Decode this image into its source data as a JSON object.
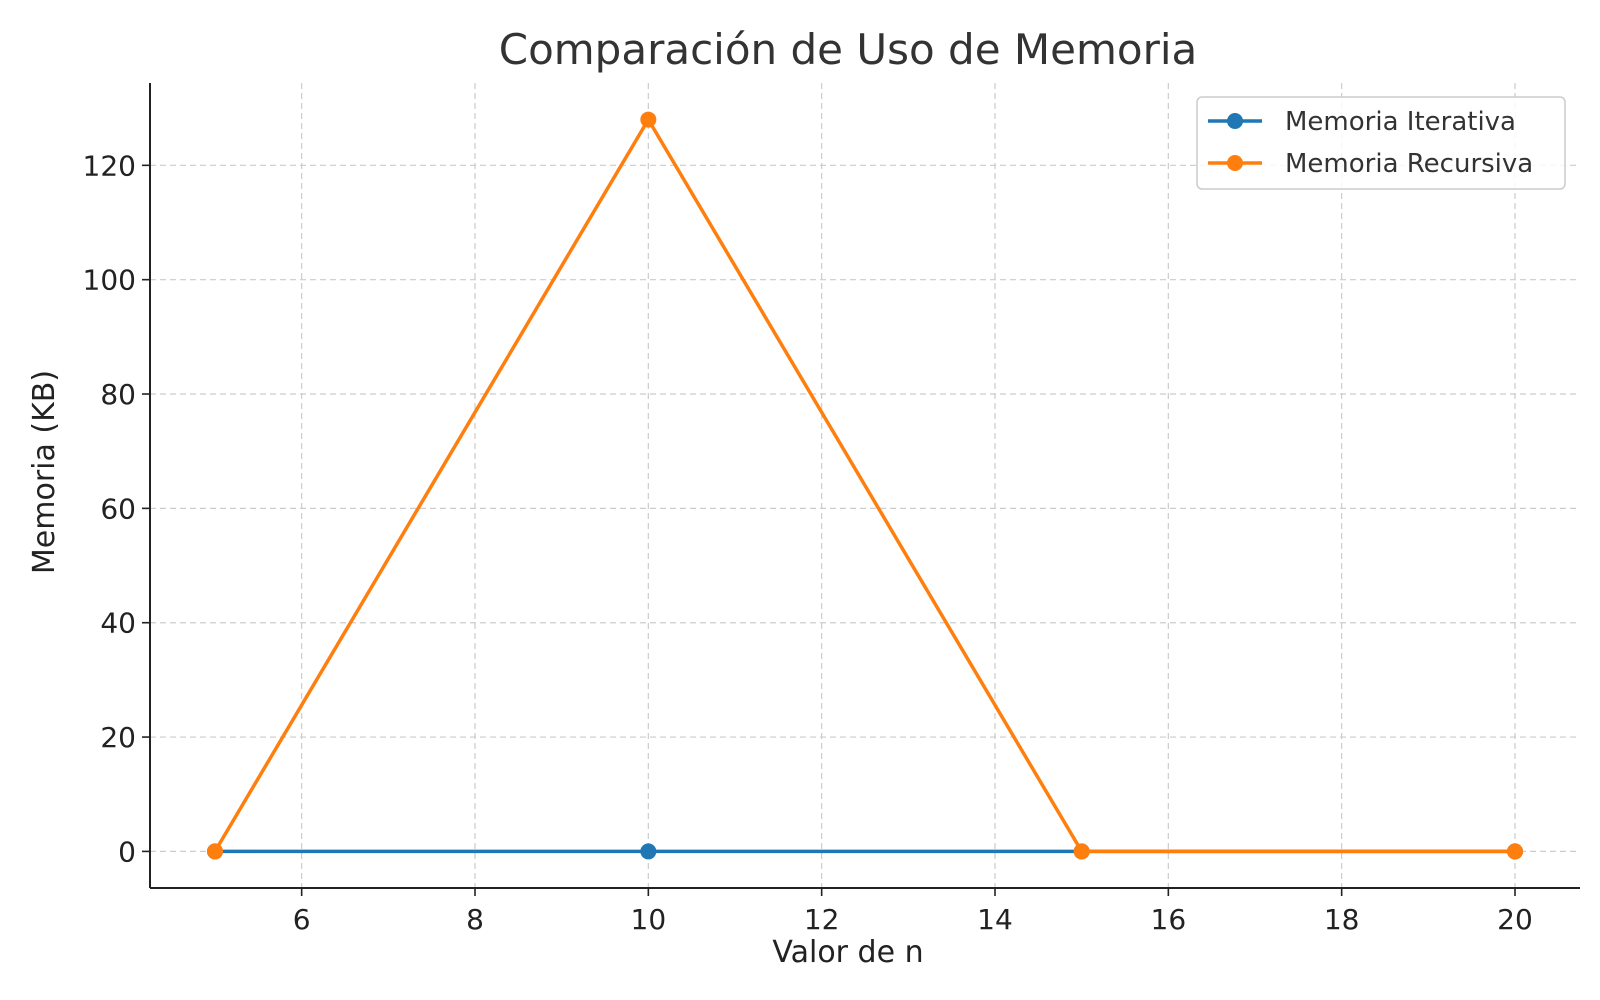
{
  "chart_data": {
    "type": "line",
    "title": "Comparación de Uso de Memoria",
    "xlabel": "Valor de n",
    "ylabel": "Memoria (KB)",
    "xlim": [
      4.25,
      20.75
    ],
    "ylim": [
      -6.4,
      134.4
    ],
    "xticks": [
      6,
      8,
      10,
      12,
      14,
      16,
      18,
      20
    ],
    "yticks": [
      0,
      20,
      40,
      60,
      80,
      100,
      120
    ],
    "grid": true,
    "legend_position": "top-right",
    "series": [
      {
        "name": "Memoria Iterativa",
        "color": "#1f77b4",
        "marker": "circle",
        "x": [
          5,
          10,
          15,
          20
        ],
        "y": [
          0,
          0,
          0,
          0
        ]
      },
      {
        "name": "Memoria Recursiva",
        "color": "#ff7f0e",
        "marker": "circle",
        "x": [
          5,
          10,
          15,
          20
        ],
        "y": [
          0,
          128,
          0,
          0
        ]
      }
    ]
  }
}
